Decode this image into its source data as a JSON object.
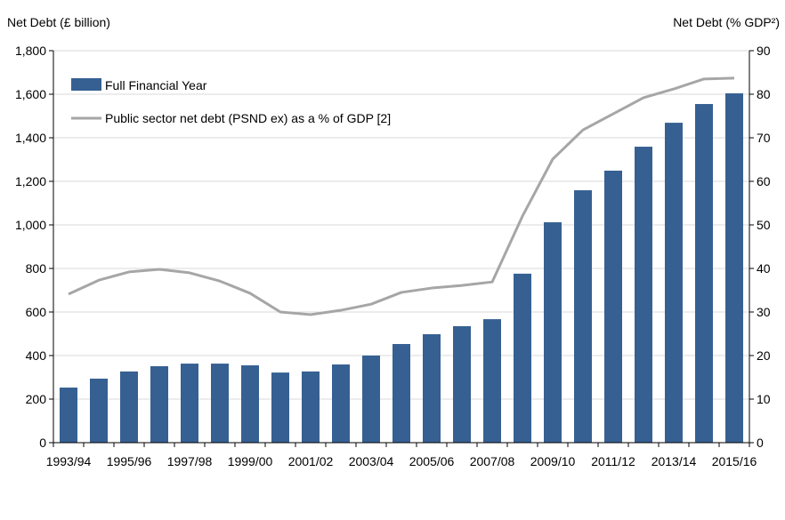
{
  "chart_data": {
    "type": "bar+line",
    "categories": [
      "1993/94",
      "1994/95",
      "1995/96",
      "1996/97",
      "1997/98",
      "1998/99",
      "1999/00",
      "2000/01",
      "2001/02",
      "2002/03",
      "2003/04",
      "2004/05",
      "2005/06",
      "2006/07",
      "2007/08",
      "2008/09",
      "2009/10",
      "2010/11",
      "2011/12",
      "2012/13",
      "2013/14",
      "2014/15",
      "2015/16"
    ],
    "tick_labels": [
      "1993/94",
      "1995/96",
      "1997/98",
      "1999/00",
      "2001/02",
      "2003/04",
      "2005/06",
      "2007/08",
      "2009/10",
      "2011/12",
      "2013/14",
      "2015/16"
    ],
    "ylabel_left": "Net Debt (£ billion)",
    "ylabel_right": "Net Debt (% GDP²)",
    "ylim_left": [
      0,
      1800
    ],
    "ylim_right": [
      0,
      90
    ],
    "yticks_left": [
      "0",
      "200",
      "400",
      "600",
      "800",
      "1,000",
      "1,200",
      "1,400",
      "1,600",
      "1,800"
    ],
    "yticks_right": [
      "0",
      "10",
      "20",
      "30",
      "40",
      "50",
      "60",
      "70",
      "80",
      "90"
    ],
    "legend_position": "top-left",
    "series": [
      {
        "name": "Full Financial Year",
        "type": "bar",
        "axis": "left",
        "color": "#366092",
        "values": [
          253,
          294,
          327,
          351,
          363,
          363,
          355,
          322,
          327,
          359,
          400,
          453,
          498,
          535,
          567,
          776,
          1012,
          1159,
          1249,
          1359,
          1469,
          1555,
          1604
        ]
      },
      {
        "name": "Public sector net debt (PSND ex) as a % of GDP [2]",
        "type": "line",
        "axis": "right",
        "color": "#a6a6a6",
        "values": [
          34.1,
          37.3,
          39.2,
          39.8,
          39.0,
          37.1,
          34.3,
          30.0,
          29.4,
          30.4,
          31.8,
          34.5,
          35.5,
          36.1,
          36.9,
          52.0,
          65.1,
          71.8,
          75.5,
          79.2,
          81.2,
          83.5,
          83.7
        ]
      }
    ]
  }
}
